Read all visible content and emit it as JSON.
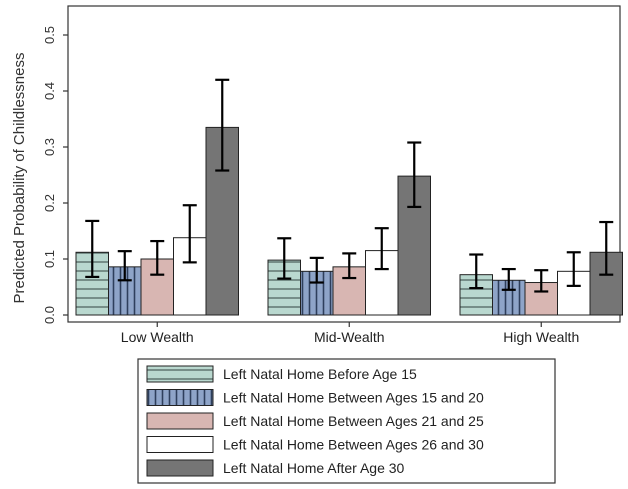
{
  "chart_data": {
    "type": "bar",
    "title": "",
    "xlabel": "",
    "ylabel": "Predicted Probability of Childlessness",
    "ylim": [
      0,
      0.5
    ],
    "yticks": [
      "0.0",
      "0.1",
      "0.2",
      "0.3",
      "0.4",
      "0.5"
    ],
    "categories": [
      "Low Wealth",
      "Mid-Wealth",
      "High Wealth"
    ],
    "series": [
      {
        "name": "Left Natal Home Before Age 15",
        "color": "#b9d8cf",
        "pattern": "horizontal-lines",
        "values": [
          0.112,
          0.098,
          0.072
        ],
        "ci_low": [
          0.068,
          0.065,
          0.048
        ],
        "ci_high": [
          0.168,
          0.137,
          0.108
        ]
      },
      {
        "name": "Left Natal Home Between Ages 15 and 20",
        "color": "#8ea4c8",
        "pattern": "vertical-lines",
        "values": [
          0.086,
          0.078,
          0.062
        ],
        "ci_low": [
          0.062,
          0.058,
          0.045
        ],
        "ci_high": [
          0.114,
          0.102,
          0.082
        ]
      },
      {
        "name": "Left Natal Home Between Ages 21 and 25",
        "color": "#d8b6b2",
        "pattern": "solid",
        "values": [
          0.1,
          0.086,
          0.058
        ],
        "ci_low": [
          0.072,
          0.066,
          0.042
        ],
        "ci_high": [
          0.132,
          0.11,
          0.08
        ]
      },
      {
        "name": "Left Natal Home Between Ages 26 and 30",
        "color": "#ffffff",
        "pattern": "solid",
        "values": [
          0.138,
          0.115,
          0.078
        ],
        "ci_low": [
          0.094,
          0.082,
          0.052
        ],
        "ci_high": [
          0.196,
          0.155,
          0.112
        ]
      },
      {
        "name": "Left Natal Home After Age 30",
        "color": "#757575",
        "pattern": "solid",
        "values": [
          0.335,
          0.248,
          0.112
        ],
        "ci_low": [
          0.258,
          0.193,
          0.072
        ],
        "ci_high": [
          0.42,
          0.308,
          0.166
        ]
      }
    ],
    "error_bars": true,
    "grid": false,
    "legend_position": "bottom"
  }
}
